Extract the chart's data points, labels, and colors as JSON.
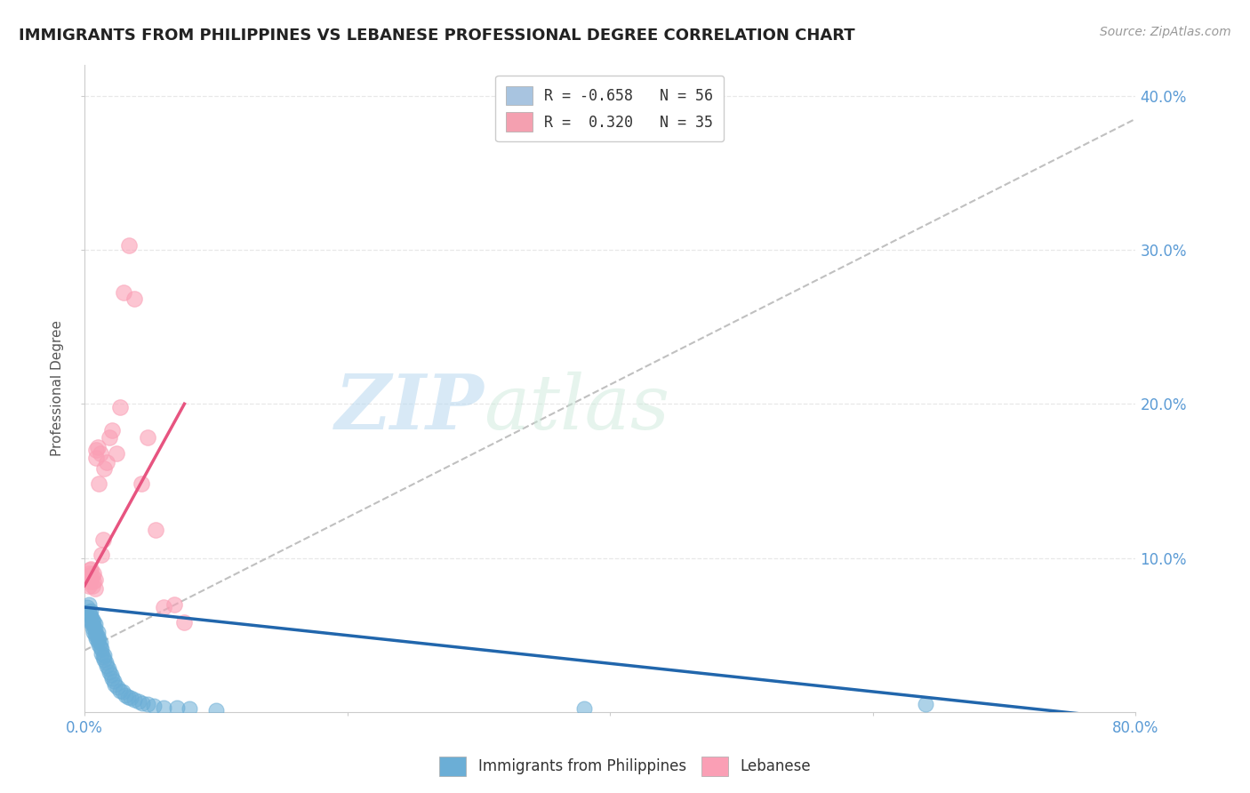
{
  "title": "IMMIGRANTS FROM PHILIPPINES VS LEBANESE PROFESSIONAL DEGREE CORRELATION CHART",
  "source": "Source: ZipAtlas.com",
  "ylabel": "Professional Degree",
  "yticks": [
    "10.0%",
    "20.0%",
    "30.0%",
    "40.0%"
  ],
  "ytick_vals": [
    0.1,
    0.2,
    0.3,
    0.4
  ],
  "xlim": [
    0.0,
    0.8
  ],
  "ylim": [
    0.0,
    0.42
  ],
  "legend_entries": [
    {
      "label": "R = -0.658   N = 56",
      "color": "#a8c4e0"
    },
    {
      "label": "R =  0.320   N = 35",
      "color": "#f4a0b0"
    }
  ],
  "watermark_zip": "ZIP",
  "watermark_atlas": "atlas",
  "philippines_scatter_x": [
    0.002,
    0.003,
    0.003,
    0.004,
    0.004,
    0.005,
    0.005,
    0.005,
    0.006,
    0.006,
    0.006,
    0.007,
    0.007,
    0.007,
    0.008,
    0.008,
    0.008,
    0.009,
    0.009,
    0.01,
    0.01,
    0.01,
    0.011,
    0.011,
    0.012,
    0.012,
    0.013,
    0.013,
    0.014,
    0.015,
    0.015,
    0.016,
    0.017,
    0.018,
    0.019,
    0.02,
    0.021,
    0.022,
    0.023,
    0.025,
    0.027,
    0.029,
    0.031,
    0.033,
    0.035,
    0.038,
    0.041,
    0.044,
    0.048,
    0.053,
    0.06,
    0.07,
    0.08,
    0.1,
    0.38,
    0.64
  ],
  "philippines_scatter_y": [
    0.068,
    0.065,
    0.07,
    0.06,
    0.063,
    0.058,
    0.062,
    0.066,
    0.055,
    0.058,
    0.06,
    0.052,
    0.056,
    0.059,
    0.05,
    0.054,
    0.057,
    0.048,
    0.051,
    0.046,
    0.049,
    0.052,
    0.044,
    0.047,
    0.042,
    0.045,
    0.038,
    0.041,
    0.036,
    0.034,
    0.037,
    0.032,
    0.03,
    0.028,
    0.026,
    0.024,
    0.022,
    0.02,
    0.018,
    0.016,
    0.014,
    0.013,
    0.011,
    0.01,
    0.009,
    0.008,
    0.007,
    0.006,
    0.005,
    0.004,
    0.003,
    0.003,
    0.002,
    0.001,
    0.002,
    0.005
  ],
  "lebanese_scatter_x": [
    0.002,
    0.003,
    0.003,
    0.004,
    0.004,
    0.005,
    0.005,
    0.006,
    0.006,
    0.007,
    0.007,
    0.008,
    0.008,
    0.009,
    0.009,
    0.01,
    0.011,
    0.012,
    0.013,
    0.014,
    0.015,
    0.017,
    0.019,
    0.021,
    0.024,
    0.027,
    0.03,
    0.034,
    0.038,
    0.043,
    0.048,
    0.054,
    0.06,
    0.068,
    0.076
  ],
  "lebanese_scatter_y": [
    0.088,
    0.082,
    0.09,
    0.085,
    0.092,
    0.087,
    0.093,
    0.082,
    0.088,
    0.085,
    0.09,
    0.08,
    0.086,
    0.17,
    0.165,
    0.172,
    0.148,
    0.168,
    0.102,
    0.112,
    0.158,
    0.162,
    0.178,
    0.183,
    0.168,
    0.198,
    0.272,
    0.303,
    0.268,
    0.148,
    0.178,
    0.118,
    0.068,
    0.07,
    0.058
  ],
  "philippines_line_x": [
    0.0,
    0.8
  ],
  "philippines_line_y": [
    0.068,
    -0.005
  ],
  "lebanese_line_x": [
    0.0,
    0.076
  ],
  "lebanese_line_y": [
    0.082,
    0.2
  ],
  "dashed_line_x": [
    0.0,
    0.8
  ],
  "dashed_line_y": [
    0.04,
    0.385
  ],
  "philippines_color": "#6baed6",
  "lebanese_color": "#fa9fb5",
  "philippines_line_color": "#2166ac",
  "lebanese_line_color": "#e75480",
  "dashed_line_color": "#c0c0c0",
  "grid_color": "#e8e8e8",
  "title_color": "#222222",
  "axis_color": "#5b9bd5",
  "background_color": "#ffffff"
}
